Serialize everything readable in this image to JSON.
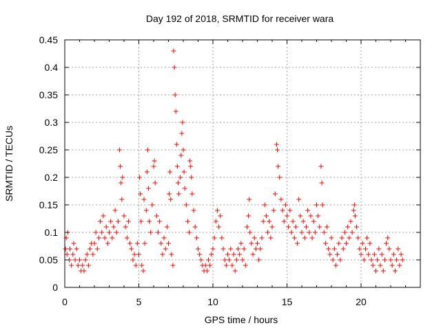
{
  "chart_data": {
    "type": "scatter",
    "title": "Day 192 of 2018, SRMTID for receiver wara",
    "xlabel": "GPS time / hours",
    "ylabel": "SRMTID / TECUs",
    "xlim": [
      0,
      24
    ],
    "ylim": [
      0,
      0.45
    ],
    "x_ticks": [
      0,
      5,
      10,
      15,
      20
    ],
    "x_tick_labels": [
      "0",
      "5",
      "10",
      "15",
      "20"
    ],
    "y_ticks": [
      0,
      0.05,
      0.1,
      0.15,
      0.2,
      0.25,
      0.3,
      0.35,
      0.4,
      0.45
    ],
    "y_tick_labels": [
      "0",
      "0.05",
      "0.1",
      "0.15",
      "0.2",
      "0.25",
      "0.3",
      "0.35",
      "0.4",
      "0.45"
    ],
    "grid": true,
    "marker": "plus",
    "color": "#ff0000",
    "series": [
      {
        "name": "SRMTID",
        "points": [
          [
            0.05,
            0.07
          ],
          [
            0.1,
            0.09
          ],
          [
            0.15,
            0.06
          ],
          [
            0.2,
            0.1
          ],
          [
            0.3,
            0.05
          ],
          [
            0.35,
            0.07
          ],
          [
            0.45,
            0.04
          ],
          [
            0.55,
            0.06
          ],
          [
            0.6,
            0.08
          ],
          [
            0.7,
            0.05
          ],
          [
            0.8,
            0.07
          ],
          [
            0.9,
            0.04
          ],
          [
            1.0,
            0.05
          ],
          [
            1.1,
            0.03
          ],
          [
            1.2,
            0.04
          ],
          [
            1.3,
            0.03
          ],
          [
            1.4,
            0.05
          ],
          [
            1.5,
            0.06
          ],
          [
            1.6,
            0.04
          ],
          [
            1.7,
            0.07
          ],
          [
            1.8,
            0.08
          ],
          [
            1.9,
            0.06
          ],
          [
            2.0,
            0.08
          ],
          [
            2.1,
            0.1
          ],
          [
            2.2,
            0.07
          ],
          [
            2.3,
            0.09
          ],
          [
            2.4,
            0.12
          ],
          [
            2.5,
            0.1
          ],
          [
            2.6,
            0.13
          ],
          [
            2.7,
            0.09
          ],
          [
            2.8,
            0.11
          ],
          [
            2.9,
            0.08
          ],
          [
            3.0,
            0.1
          ],
          [
            3.1,
            0.12
          ],
          [
            3.2,
            0.09
          ],
          [
            3.3,
            0.11
          ],
          [
            3.4,
            0.14
          ],
          [
            3.5,
            0.1
          ],
          [
            3.6,
            0.12
          ],
          [
            3.7,
            0.25
          ],
          [
            3.75,
            0.22
          ],
          [
            3.8,
            0.19
          ],
          [
            3.85,
            0.16
          ],
          [
            3.9,
            0.2
          ],
          [
            4.0,
            0.13
          ],
          [
            4.1,
            0.11
          ],
          [
            4.2,
            0.09
          ],
          [
            4.3,
            0.12
          ],
          [
            4.4,
            0.08
          ],
          [
            4.5,
            0.07
          ],
          [
            4.6,
            0.05
          ],
          [
            4.7,
            0.06
          ],
          [
            4.8,
            0.04
          ],
          [
            4.9,
            0.08
          ],
          [
            5.0,
            0.06
          ],
          [
            5.05,
            0.2
          ],
          [
            5.1,
            0.17
          ],
          [
            5.15,
            0.12
          ],
          [
            5.2,
            0.04
          ],
          [
            5.3,
            0.03
          ],
          [
            5.35,
            0.16
          ],
          [
            5.4,
            0.08
          ],
          [
            5.5,
            0.14
          ],
          [
            5.55,
            0.21
          ],
          [
            5.6,
            0.25
          ],
          [
            5.65,
            0.18
          ],
          [
            5.7,
            0.12
          ],
          [
            5.8,
            0.1
          ],
          [
            5.9,
            0.15
          ],
          [
            6.0,
            0.22
          ],
          [
            6.05,
            0.23
          ],
          [
            6.1,
            0.19
          ],
          [
            6.2,
            0.13
          ],
          [
            6.3,
            0.1
          ],
          [
            6.4,
            0.12
          ],
          [
            6.5,
            0.08
          ],
          [
            6.6,
            0.06
          ],
          [
            6.7,
            0.09
          ],
          [
            6.8,
            0.07
          ],
          [
            6.9,
            0.11
          ],
          [
            7.0,
            0.08
          ],
          [
            7.05,
            0.17
          ],
          [
            7.1,
            0.21
          ],
          [
            7.15,
            0.16
          ],
          [
            7.2,
            0.06
          ],
          [
            7.3,
            0.04
          ],
          [
            7.35,
            0.43
          ],
          [
            7.4,
            0.4
          ],
          [
            7.45,
            0.35
          ],
          [
            7.5,
            0.32
          ],
          [
            7.55,
            0.26
          ],
          [
            7.6,
            0.22
          ],
          [
            7.65,
            0.19
          ],
          [
            7.7,
            0.17
          ],
          [
            7.8,
            0.2
          ],
          [
            7.85,
            0.24
          ],
          [
            7.9,
            0.28
          ],
          [
            7.95,
            0.3
          ],
          [
            8.0,
            0.25
          ],
          [
            8.05,
            0.21
          ],
          [
            8.1,
            0.18
          ],
          [
            8.2,
            0.15
          ],
          [
            8.3,
            0.12
          ],
          [
            8.4,
            0.1
          ],
          [
            8.45,
            0.23
          ],
          [
            8.5,
            0.22
          ],
          [
            8.55,
            0.2
          ],
          [
            8.6,
            0.17
          ],
          [
            8.7,
            0.14
          ],
          [
            8.8,
            0.11
          ],
          [
            8.9,
            0.09
          ],
          [
            9.0,
            0.07
          ],
          [
            9.1,
            0.06
          ],
          [
            9.2,
            0.05
          ],
          [
            9.3,
            0.04
          ],
          [
            9.4,
            0.03
          ],
          [
            9.5,
            0.04
          ],
          [
            9.6,
            0.03
          ],
          [
            9.7,
            0.05
          ],
          [
            9.8,
            0.04
          ],
          [
            9.9,
            0.06
          ],
          [
            10.0,
            0.07
          ],
          [
            10.1,
            0.09
          ],
          [
            10.2,
            0.12
          ],
          [
            10.3,
            0.14
          ],
          [
            10.4,
            0.11
          ],
          [
            10.5,
            0.13
          ],
          [
            10.6,
            0.09
          ],
          [
            10.7,
            0.07
          ],
          [
            10.8,
            0.05
          ],
          [
            10.9,
            0.04
          ],
          [
            11.0,
            0.06
          ],
          [
            11.1,
            0.05
          ],
          [
            11.2,
            0.07
          ],
          [
            11.3,
            0.04
          ],
          [
            11.4,
            0.06
          ],
          [
            11.5,
            0.03
          ],
          [
            11.6,
            0.05
          ],
          [
            11.7,
            0.07
          ],
          [
            11.8,
            0.06
          ],
          [
            11.9,
            0.08
          ],
          [
            12.0,
            0.05
          ],
          [
            12.1,
            0.07
          ],
          [
            12.2,
            0.04
          ],
          [
            12.3,
            0.11
          ],
          [
            12.4,
            0.13
          ],
          [
            12.45,
            0.16
          ],
          [
            12.5,
            0.1
          ],
          [
            12.6,
            0.08
          ],
          [
            12.7,
            0.06
          ],
          [
            12.8,
            0.09
          ],
          [
            12.9,
            0.07
          ],
          [
            13.0,
            0.08
          ],
          [
            13.1,
            0.05
          ],
          [
            13.2,
            0.07
          ],
          [
            13.3,
            0.09
          ],
          [
            13.4,
            0.12
          ],
          [
            13.5,
            0.15
          ],
          [
            13.6,
            0.13
          ],
          [
            13.7,
            0.1
          ],
          [
            13.8,
            0.12
          ],
          [
            13.9,
            0.09
          ],
          [
            14.0,
            0.11
          ],
          [
            14.1,
            0.14
          ],
          [
            14.2,
            0.17
          ],
          [
            14.3,
            0.26
          ],
          [
            14.35,
            0.25
          ],
          [
            14.4,
            0.22
          ],
          [
            14.5,
            0.2
          ],
          [
            14.6,
            0.16
          ],
          [
            14.7,
            0.14
          ],
          [
            14.8,
            0.12
          ],
          [
            14.9,
            0.15
          ],
          [
            15.0,
            0.13
          ],
          [
            15.1,
            0.11
          ],
          [
            15.2,
            0.14
          ],
          [
            15.3,
            0.1
          ],
          [
            15.4,
            0.12
          ],
          [
            15.5,
            0.09
          ],
          [
            15.6,
            0.11
          ],
          [
            15.7,
            0.08
          ],
          [
            15.8,
            0.16
          ],
          [
            15.9,
            0.13
          ],
          [
            16.0,
            0.1
          ],
          [
            16.1,
            0.12
          ],
          [
            16.2,
            0.09
          ],
          [
            16.3,
            0.11
          ],
          [
            16.4,
            0.14
          ],
          [
            16.5,
            0.1
          ],
          [
            16.6,
            0.13
          ],
          [
            16.7,
            0.09
          ],
          [
            16.8,
            0.12
          ],
          [
            16.9,
            0.1
          ],
          [
            17.0,
            0.15
          ],
          [
            17.1,
            0.13
          ],
          [
            17.2,
            0.11
          ],
          [
            17.3,
            0.22
          ],
          [
            17.35,
            0.19
          ],
          [
            17.4,
            0.15
          ],
          [
            17.5,
            0.1
          ],
          [
            17.6,
            0.08
          ],
          [
            17.7,
            0.11
          ],
          [
            17.8,
            0.07
          ],
          [
            17.9,
            0.06
          ],
          [
            18.0,
            0.09
          ],
          [
            18.1,
            0.05
          ],
          [
            18.2,
            0.07
          ],
          [
            18.3,
            0.04
          ],
          [
            18.4,
            0.06
          ],
          [
            18.5,
            0.08
          ],
          [
            18.6,
            0.05
          ],
          [
            18.7,
            0.09
          ],
          [
            18.8,
            0.07
          ],
          [
            18.9,
            0.1
          ],
          [
            19.0,
            0.08
          ],
          [
            19.1,
            0.11
          ],
          [
            19.2,
            0.09
          ],
          [
            19.3,
            0.12
          ],
          [
            19.4,
            0.1
          ],
          [
            19.5,
            0.14
          ],
          [
            19.55,
            0.15
          ],
          [
            19.6,
            0.13
          ],
          [
            19.7,
            0.11
          ],
          [
            19.8,
            0.09
          ],
          [
            19.9,
            0.07
          ],
          [
            20.0,
            0.06
          ],
          [
            20.1,
            0.08
          ],
          [
            20.2,
            0.05
          ],
          [
            20.3,
            0.07
          ],
          [
            20.4,
            0.09
          ],
          [
            20.5,
            0.06
          ],
          [
            20.6,
            0.08
          ],
          [
            20.7,
            0.05
          ],
          [
            20.8,
            0.04
          ],
          [
            20.9,
            0.06
          ],
          [
            21.0,
            0.03
          ],
          [
            21.1,
            0.05
          ],
          [
            21.2,
            0.07
          ],
          [
            21.3,
            0.04
          ],
          [
            21.4,
            0.06
          ],
          [
            21.5,
            0.03
          ],
          [
            21.6,
            0.05
          ],
          [
            21.7,
            0.08
          ],
          [
            21.8,
            0.09
          ],
          [
            21.9,
            0.07
          ],
          [
            22.0,
            0.05
          ],
          [
            22.1,
            0.04
          ],
          [
            22.2,
            0.06
          ],
          [
            22.3,
            0.03
          ],
          [
            22.4,
            0.05
          ],
          [
            22.5,
            0.07
          ],
          [
            22.6,
            0.04
          ],
          [
            22.7,
            0.06
          ],
          [
            22.8,
            0.05
          ]
        ]
      }
    ]
  }
}
